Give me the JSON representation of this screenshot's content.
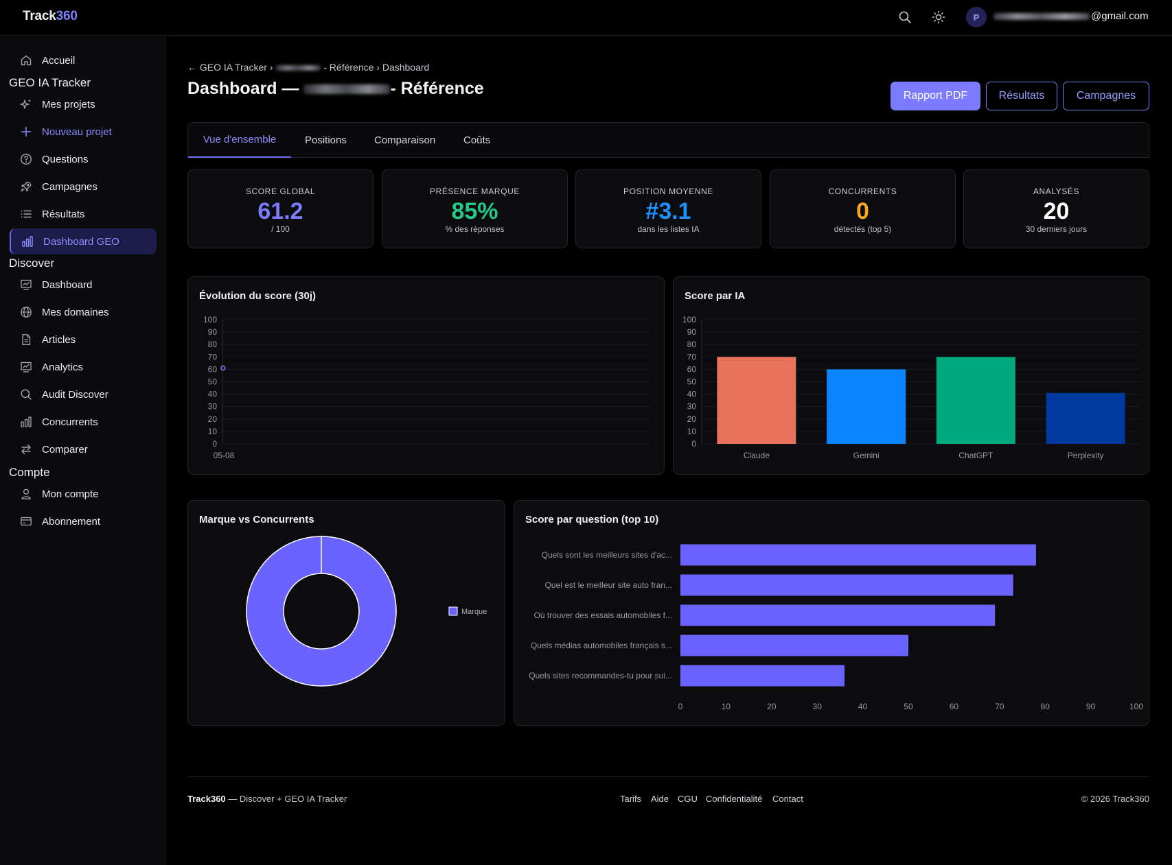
{
  "app": {
    "logo_main": "Track",
    "logo_accent": "360",
    "user_initial": "P",
    "user_email_suffix": "@gmail.com"
  },
  "sidebar": {
    "home": "Accueil",
    "section_geo": "GEO IA Tracker",
    "geo_items": [
      "Mes projets",
      "Nouveau projet",
      "Questions",
      "Campagnes",
      "Résultats",
      "Dashboard GEO"
    ],
    "section_discover": "Discover",
    "discover_items": [
      "Dashboard",
      "Mes domaines",
      "Articles",
      "Analytics",
      "Audit Discover",
      "Concurrents",
      "Comparer"
    ],
    "section_account": "Compte",
    "account_items": [
      "Mon compte",
      "Abonnement"
    ]
  },
  "header": {
    "breadcrumb_back": "← GEO IA Tracker ›",
    "breadcrumb_rest": "- Référence › Dashboard",
    "title_prefix": "Dashboard —",
    "title_suffix": "- Référence",
    "btn_pdf": "Rapport PDF",
    "btn_results": "Résultats",
    "btn_campaigns": "Campagnes"
  },
  "tabs": [
    "Vue d'ensemble",
    "Positions",
    "Comparaison",
    "Coûts"
  ],
  "kpis": [
    {
      "label": "SCORE GLOBAL",
      "value": "61.2",
      "sub": "/ 100",
      "color": "#7b7bff"
    },
    {
      "label": "PRÉSENCE MARQUE",
      "value": "85%",
      "sub": "% des réponses",
      "color": "#22c98a"
    },
    {
      "label": "POSITION MOYENNE",
      "value": "#3.1",
      "sub": "dans les listes IA",
      "color": "#1e90ff"
    },
    {
      "label": "CONCURRENTS",
      "value": "0",
      "sub": "détectés (top 5)",
      "color": "#f5a623"
    },
    {
      "label": "ANALYSÉS",
      "value": "20",
      "sub": "30 derniers jours",
      "color": "#ffffff"
    }
  ],
  "chart_data": [
    {
      "type": "line",
      "title": "Évolution du score (30j)",
      "x": [
        "05-08"
      ],
      "series": [
        {
          "values": [
            61
          ]
        }
      ],
      "ylim": [
        0,
        100
      ],
      "yticks": [
        0,
        10,
        20,
        30,
        40,
        50,
        60,
        70,
        80,
        90,
        100
      ],
      "color": "#7b7bff"
    },
    {
      "type": "bar",
      "title": "Score par IA",
      "categories": [
        "Claude",
        "Gemini",
        "ChatGPT",
        "Perplexity"
      ],
      "values": [
        70,
        60,
        70,
        41
      ],
      "colors": [
        "#e8735a",
        "#0a84ff",
        "#00a87e",
        "#003a9e"
      ],
      "ylim": [
        0,
        100
      ],
      "yticks": [
        0,
        10,
        20,
        30,
        40,
        50,
        60,
        70,
        80,
        90,
        100
      ]
    },
    {
      "type": "pie",
      "title": "Marque vs Concurrents",
      "labels": [
        "Marque"
      ],
      "values": [
        100
      ],
      "colors": [
        "#6a63ff"
      ]
    },
    {
      "type": "bar",
      "orientation": "horizontal",
      "title": "Score par question (top 10)",
      "categories": [
        "Quels sont les meilleurs sites d'ac...",
        "Quel est le meilleur site auto fran...",
        "Où trouver des essais automobiles f...",
        "Quels médias automobiles français s...",
        "Quels sites recommandes-tu pour sui..."
      ],
      "values": [
        78,
        73,
        69,
        50,
        36
      ],
      "xlim": [
        0,
        100
      ],
      "xticks": [
        0,
        10,
        20,
        30,
        40,
        50,
        60,
        70,
        80,
        90,
        100
      ],
      "color": "#6a63ff"
    }
  ],
  "footer": {
    "brand": "Track360",
    "brand_desc": " — Discover + GEO IA Tracker",
    "links": [
      "Tarifs",
      "Aide",
      "CGU",
      "Confidentialité",
      "Contact"
    ],
    "copyright": "© 2026 Track360"
  }
}
